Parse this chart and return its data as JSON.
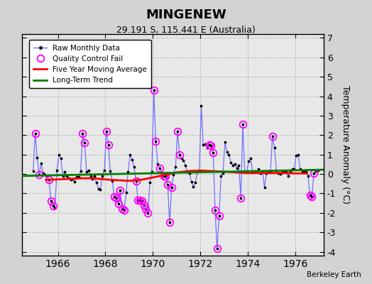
{
  "title": "MINGENEW",
  "subtitle": "29.191 S, 115.441 E (Australia)",
  "ylabel": "Temperature Anomaly (°C)",
  "watermark": "Berkeley Earth",
  "xlim": [
    1964.5,
    1977.2
  ],
  "ylim": [
    -4.2,
    7.2
  ],
  "yticks": [
    -4,
    -3,
    -2,
    -1,
    0,
    1,
    2,
    3,
    4,
    5,
    6,
    7
  ],
  "xticks": [
    1966,
    1968,
    1970,
    1972,
    1974,
    1976
  ],
  "bg_color": "#d3d3d3",
  "plot_bg_color": "#e8e8e8",
  "line_color": "#7070ff",
  "raw_data": [
    [
      1964.958,
      0.15
    ],
    [
      1965.042,
      2.1
    ],
    [
      1965.125,
      0.85
    ],
    [
      1965.208,
      -0.05
    ],
    [
      1965.292,
      0.55
    ],
    [
      1965.375,
      0.05
    ],
    [
      1965.458,
      -0.05
    ],
    [
      1965.542,
      -0.1
    ],
    [
      1965.625,
      -0.3
    ],
    [
      1965.708,
      -1.4
    ],
    [
      1965.792,
      -1.65
    ],
    [
      1965.875,
      -1.75
    ],
    [
      1965.958,
      0.2
    ],
    [
      1966.042,
      1.0
    ],
    [
      1966.125,
      0.8
    ],
    [
      1966.208,
      -0.1
    ],
    [
      1966.292,
      0.1
    ],
    [
      1966.375,
      -0.1
    ],
    [
      1966.458,
      -0.2
    ],
    [
      1966.542,
      -0.3
    ],
    [
      1966.625,
      -0.25
    ],
    [
      1966.708,
      -0.4
    ],
    [
      1966.792,
      -0.15
    ],
    [
      1966.875,
      -0.15
    ],
    [
      1966.958,
      0.15
    ],
    [
      1967.042,
      2.1
    ],
    [
      1967.125,
      1.6
    ],
    [
      1967.208,
      0.1
    ],
    [
      1967.292,
      0.2
    ],
    [
      1967.375,
      -0.1
    ],
    [
      1967.458,
      -0.25
    ],
    [
      1967.542,
      -0.1
    ],
    [
      1967.625,
      -0.45
    ],
    [
      1967.708,
      -0.75
    ],
    [
      1967.792,
      -0.8
    ],
    [
      1967.875,
      -0.1
    ],
    [
      1967.958,
      0.2
    ],
    [
      1968.042,
      2.2
    ],
    [
      1968.125,
      1.5
    ],
    [
      1968.208,
      0.15
    ],
    [
      1968.292,
      -0.35
    ],
    [
      1968.375,
      -1.15
    ],
    [
      1968.458,
      -1.25
    ],
    [
      1968.542,
      -1.55
    ],
    [
      1968.625,
      -0.85
    ],
    [
      1968.708,
      -1.8
    ],
    [
      1968.792,
      -1.85
    ],
    [
      1968.875,
      -0.95
    ],
    [
      1968.958,
      0.1
    ],
    [
      1969.042,
      1.0
    ],
    [
      1969.125,
      0.75
    ],
    [
      1969.208,
      0.35
    ],
    [
      1969.292,
      -0.35
    ],
    [
      1969.375,
      -1.35
    ],
    [
      1969.458,
      -1.35
    ],
    [
      1969.542,
      -1.4
    ],
    [
      1969.625,
      -1.6
    ],
    [
      1969.708,
      -1.8
    ],
    [
      1969.792,
      -2.0
    ],
    [
      1969.875,
      -0.45
    ],
    [
      1969.958,
      0.1
    ],
    [
      1970.042,
      4.3
    ],
    [
      1970.125,
      1.7
    ],
    [
      1970.208,
      0.5
    ],
    [
      1970.292,
      0.3
    ],
    [
      1970.375,
      0.05
    ],
    [
      1970.458,
      -0.1
    ],
    [
      1970.542,
      -0.1
    ],
    [
      1970.625,
      -0.55
    ],
    [
      1970.708,
      -2.5
    ],
    [
      1970.792,
      -0.7
    ],
    [
      1970.875,
      -0.05
    ],
    [
      1970.958,
      0.35
    ],
    [
      1971.042,
      2.2
    ],
    [
      1971.125,
      1.0
    ],
    [
      1971.208,
      0.8
    ],
    [
      1971.292,
      0.7
    ],
    [
      1971.375,
      0.45
    ],
    [
      1971.458,
      0.1
    ],
    [
      1971.542,
      0.05
    ],
    [
      1971.625,
      -0.4
    ],
    [
      1971.708,
      -0.65
    ],
    [
      1971.792,
      -0.45
    ],
    [
      1971.875,
      0.1
    ],
    [
      1971.958,
      0.15
    ],
    [
      1972.042,
      3.5
    ],
    [
      1972.125,
      1.5
    ],
    [
      1972.208,
      1.55
    ],
    [
      1972.292,
      1.35
    ],
    [
      1972.375,
      1.5
    ],
    [
      1972.458,
      1.45
    ],
    [
      1972.542,
      1.1
    ],
    [
      1972.625,
      -1.85
    ],
    [
      1972.708,
      -3.85
    ],
    [
      1972.792,
      -2.15
    ],
    [
      1972.875,
      -0.1
    ],
    [
      1972.958,
      0.05
    ],
    [
      1973.042,
      1.65
    ],
    [
      1973.125,
      1.15
    ],
    [
      1973.208,
      1.0
    ],
    [
      1973.292,
      0.6
    ],
    [
      1973.375,
      0.45
    ],
    [
      1973.458,
      0.5
    ],
    [
      1973.542,
      0.3
    ],
    [
      1973.625,
      0.45
    ],
    [
      1973.708,
      -1.25
    ],
    [
      1973.792,
      2.55
    ],
    [
      1973.875,
      0.1
    ],
    [
      1973.958,
      0.1
    ],
    [
      1974.042,
      0.65
    ],
    [
      1974.125,
      0.8
    ],
    [
      1974.208,
      0.1
    ],
    [
      1974.292,
      0.15
    ],
    [
      1974.375,
      0.1
    ],
    [
      1974.458,
      0.25
    ],
    [
      1974.542,
      0.05
    ],
    [
      1974.625,
      0.1
    ],
    [
      1974.708,
      -0.7
    ],
    [
      1974.792,
      0.05
    ],
    [
      1974.875,
      0.1
    ],
    [
      1974.958,
      0.1
    ],
    [
      1975.042,
      1.95
    ],
    [
      1975.125,
      1.35
    ],
    [
      1975.208,
      0.2
    ],
    [
      1975.292,
      0.05
    ],
    [
      1975.375,
      0.0
    ],
    [
      1975.458,
      0.15
    ],
    [
      1975.542,
      0.1
    ],
    [
      1975.625,
      0.1
    ],
    [
      1975.708,
      -0.1
    ],
    [
      1975.792,
      0.1
    ],
    [
      1975.875,
      0.25
    ],
    [
      1975.958,
      0.25
    ],
    [
      1976.042,
      0.95
    ],
    [
      1976.125,
      1.0
    ],
    [
      1976.208,
      0.25
    ],
    [
      1976.292,
      0.1
    ],
    [
      1976.375,
      0.1
    ],
    [
      1976.458,
      0.1
    ],
    [
      1976.542,
      -0.1
    ],
    [
      1976.625,
      -1.1
    ],
    [
      1976.708,
      -1.15
    ],
    [
      1976.792,
      0.05
    ],
    [
      1976.875,
      0.15
    ],
    [
      1976.958,
      0.2
    ]
  ],
  "qc_fail_points": [
    [
      1965.042,
      2.1
    ],
    [
      1965.208,
      -0.05
    ],
    [
      1965.625,
      -0.3
    ],
    [
      1965.708,
      -1.4
    ],
    [
      1965.792,
      -1.65
    ],
    [
      1967.042,
      2.1
    ],
    [
      1967.125,
      1.6
    ],
    [
      1968.042,
      2.2
    ],
    [
      1968.125,
      1.5
    ],
    [
      1968.375,
      -1.15
    ],
    [
      1968.458,
      -1.25
    ],
    [
      1968.542,
      -1.55
    ],
    [
      1968.625,
      -0.85
    ],
    [
      1968.708,
      -1.8
    ],
    [
      1968.792,
      -1.85
    ],
    [
      1969.292,
      -0.35
    ],
    [
      1969.375,
      -1.35
    ],
    [
      1969.458,
      -1.35
    ],
    [
      1969.542,
      -1.4
    ],
    [
      1969.625,
      -1.6
    ],
    [
      1969.708,
      -1.8
    ],
    [
      1969.792,
      -2.0
    ],
    [
      1970.042,
      4.3
    ],
    [
      1970.125,
      1.7
    ],
    [
      1970.292,
      0.3
    ],
    [
      1970.458,
      -0.1
    ],
    [
      1970.542,
      -0.1
    ],
    [
      1970.625,
      -0.55
    ],
    [
      1970.708,
      -2.5
    ],
    [
      1970.792,
      -0.7
    ],
    [
      1971.042,
      2.2
    ],
    [
      1971.125,
      1.0
    ],
    [
      1972.375,
      1.5
    ],
    [
      1972.458,
      1.45
    ],
    [
      1972.542,
      1.1
    ],
    [
      1972.625,
      -1.85
    ],
    [
      1972.708,
      -3.85
    ],
    [
      1972.792,
      -2.15
    ],
    [
      1973.708,
      -1.25
    ],
    [
      1973.792,
      2.55
    ],
    [
      1975.042,
      1.95
    ],
    [
      1976.625,
      -1.1
    ],
    [
      1976.708,
      -1.15
    ],
    [
      1976.792,
      0.05
    ]
  ],
  "moving_avg_x": [
    1965.5,
    1966.0,
    1966.5,
    1967.0,
    1967.5,
    1968.0,
    1968.5,
    1969.0,
    1969.5,
    1970.0,
    1970.5,
    1971.0,
    1971.5,
    1972.0,
    1972.5,
    1973.0,
    1973.5,
    1974.0,
    1974.5,
    1975.0,
    1975.5,
    1976.0,
    1976.5
  ],
  "moving_avg_y": [
    -0.3,
    -0.28,
    -0.25,
    -0.22,
    -0.22,
    -0.28,
    -0.32,
    -0.35,
    -0.3,
    -0.18,
    -0.05,
    0.08,
    0.15,
    0.18,
    0.15,
    0.12,
    0.08,
    0.05,
    0.05,
    0.05,
    0.05,
    0.03,
    0.03
  ],
  "trend_x": [
    1964.5,
    1977.2
  ],
  "trend_y": [
    -0.1,
    0.22
  ]
}
